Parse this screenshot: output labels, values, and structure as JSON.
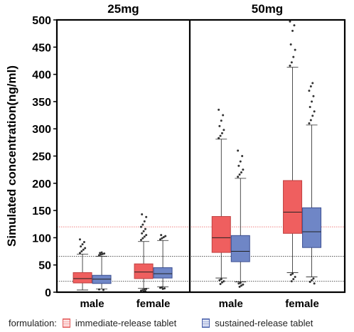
{
  "chart_data": {
    "type": "box",
    "panels": [
      {
        "title": "25mg",
        "categories": [
          "male",
          "female"
        ]
      },
      {
        "title": "50mg",
        "categories": [
          "male",
          "female"
        ]
      }
    ],
    "ylabel": "Simulated concentration(ng/ml)",
    "ylim": [
      0,
      500
    ],
    "yticks": [
      0,
      50,
      100,
      150,
      200,
      250,
      300,
      350,
      400,
      450,
      500
    ],
    "reference_lines": [
      {
        "value": 120,
        "color": "#f08080",
        "style": "dotted"
      },
      {
        "value": 66,
        "color": "#555555",
        "style": "dotted"
      },
      {
        "value": 20,
        "color": "#555555",
        "style": "dotted"
      }
    ],
    "series": [
      {
        "name": "immediate-release tablet",
        "fill": "#ef5f5f",
        "edge": "#c04040"
      },
      {
        "name": "sustained-release tablet",
        "fill": "#6f86c6",
        "edge": "#3c4f92"
      }
    ],
    "boxes": [
      {
        "panel": 0,
        "category": "male",
        "series": 0,
        "whisker_low": 4,
        "q1": 17,
        "median": 25,
        "q3": 36,
        "whisker_high": 70,
        "outliers_high": [
          72,
          75,
          78,
          81,
          84,
          88,
          92,
          97
        ],
        "outliers_low": []
      },
      {
        "panel": 0,
        "category": "male",
        "series": 1,
        "whisker_low": 6,
        "q1": 16,
        "median": 24,
        "q3": 31,
        "whisker_high": 66,
        "outliers_high": [
          68,
          69,
          70,
          71,
          72,
          73
        ],
        "outliers_low": [
          4,
          5
        ]
      },
      {
        "panel": 0,
        "category": "female",
        "series": 0,
        "whisker_low": 7,
        "q1": 25,
        "median": 37,
        "q3": 52,
        "whisker_high": 93,
        "outliers_high": [
          96,
          99,
          102,
          105,
          108,
          112,
          116,
          120,
          124,
          130,
          138,
          143
        ],
        "outliers_low": [
          1,
          2,
          3,
          4,
          5,
          6
        ]
      },
      {
        "panel": 0,
        "category": "female",
        "series": 1,
        "whisker_low": 10,
        "q1": 26,
        "median": 34,
        "q3": 45,
        "whisker_high": 95,
        "outliers_high": [
          97,
          99,
          101,
          103,
          105
        ],
        "outliers_low": [
          6,
          7,
          8,
          9
        ]
      },
      {
        "panel": 1,
        "category": "male",
        "series": 0,
        "whisker_low": 26,
        "q1": 73,
        "median": 100,
        "q3": 139,
        "whisker_high": 281,
        "outliers_high": [
          283,
          287,
          292,
          298,
          305,
          315,
          325,
          335
        ],
        "outliers_low": [
          15,
          18,
          20,
          22,
          24
        ]
      },
      {
        "panel": 1,
        "category": "male",
        "series": 1,
        "whisker_low": 19,
        "q1": 56,
        "median": 75,
        "q3": 104,
        "whisker_high": 209,
        "outliers_high": [
          212,
          216,
          220,
          225,
          232,
          240,
          250,
          260
        ],
        "outliers_low": [
          10,
          12,
          14,
          16,
          17
        ]
      },
      {
        "panel": 1,
        "category": "female",
        "series": 0,
        "whisker_low": 36,
        "q1": 108,
        "median": 147,
        "q3": 205,
        "whisker_high": 413,
        "outliers_high": [
          416,
          422,
          432,
          445,
          455,
          480,
          490,
          497
        ],
        "outliers_low": [
          20,
          24,
          28,
          32,
          34
        ]
      },
      {
        "panel": 1,
        "category": "female",
        "series": 1,
        "whisker_low": 28,
        "q1": 82,
        "median": 111,
        "q3": 155,
        "whisker_high": 307,
        "outliers_high": [
          310,
          316,
          324,
          332,
          340,
          350,
          360,
          370,
          378,
          384
        ],
        "outliers_low": [
          16,
          19,
          22,
          25
        ]
      }
    ]
  },
  "legend": {
    "title": "formulation:",
    "items": [
      "immediate-release tablet",
      "sustained-release tablet"
    ]
  }
}
